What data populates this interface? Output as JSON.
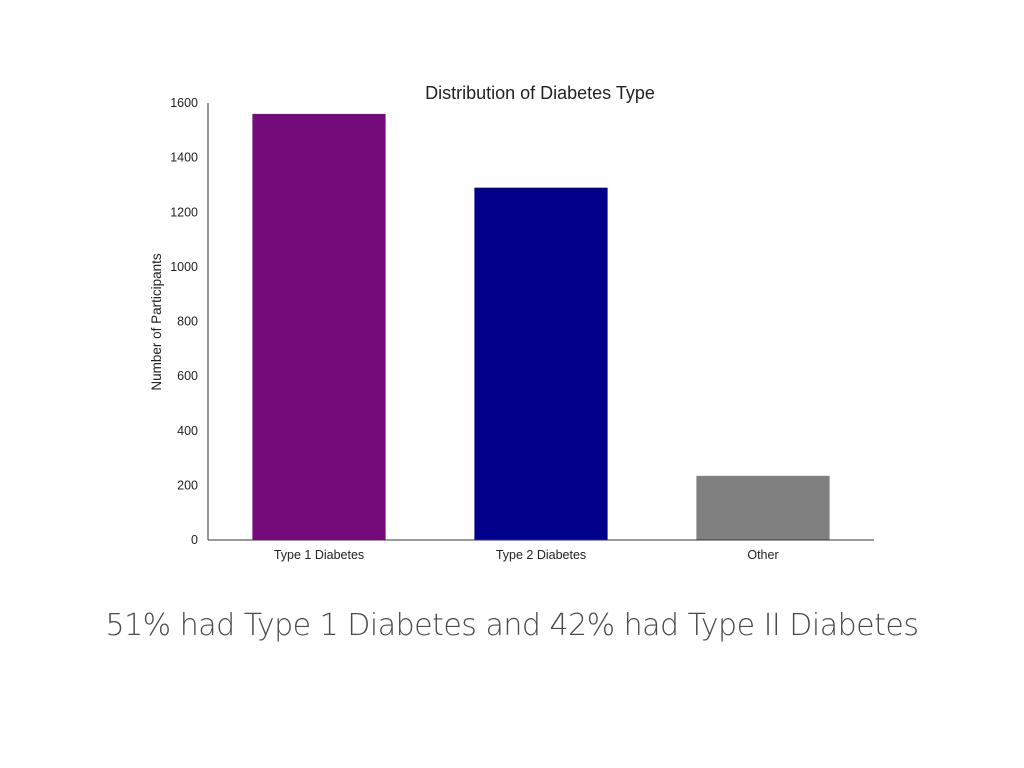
{
  "chart_data": {
    "type": "bar",
    "title": "Distribution of Diabetes Type",
    "xlabel": "",
    "ylabel": "Number of Participants",
    "categories": [
      "Type 1 Diabetes",
      "Type 2 Diabetes",
      "Other"
    ],
    "values": [
      1560,
      1290,
      235
    ],
    "colors": [
      "#750b7a",
      "#00008b",
      "#808080"
    ],
    "ylim": [
      0,
      1600
    ],
    "yticks": [
      0,
      200,
      400,
      600,
      800,
      1000,
      1200,
      1400,
      1600
    ],
    "grid": false,
    "legend": "none"
  },
  "caption": "51% had Type 1 Diabetes and 42% had Type II Diabetes"
}
